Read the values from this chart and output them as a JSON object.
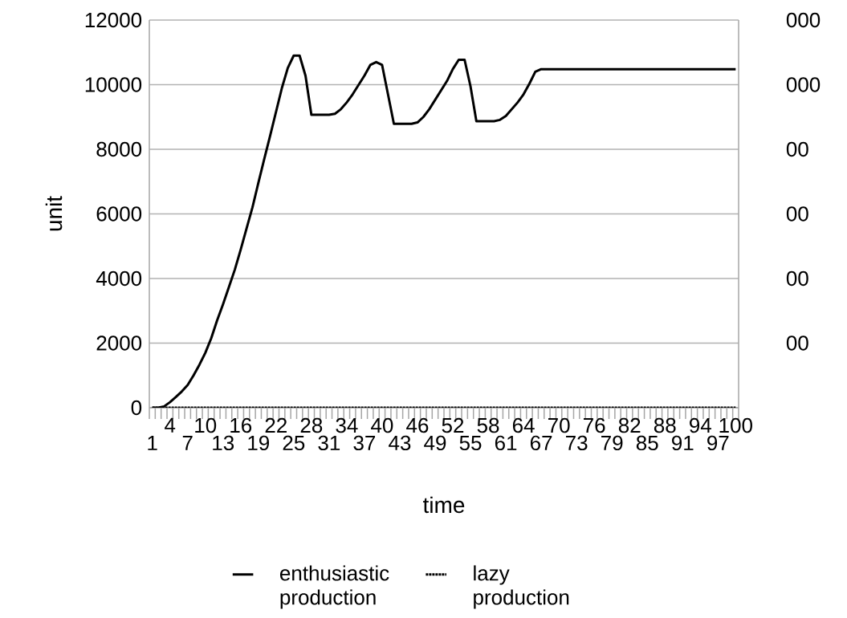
{
  "chart_data": {
    "type": "line",
    "xlabel": "time",
    "ylabel": "unit",
    "categories": [
      "1",
      null,
      null,
      "4",
      null,
      null,
      "7",
      null,
      null,
      "10",
      null,
      null,
      "13",
      null,
      null,
      "16",
      null,
      null,
      "19",
      null,
      null,
      "22",
      null,
      null,
      "25",
      null,
      null,
      "28",
      null,
      null,
      "31",
      null,
      null,
      "34",
      null,
      null,
      "37",
      null,
      null,
      "40",
      null,
      null,
      "43",
      null,
      null,
      "46",
      null,
      null,
      "49",
      null,
      null,
      "52",
      null,
      null,
      "55",
      null,
      null,
      "58",
      null,
      null,
      "61",
      null,
      null,
      "64",
      null,
      null,
      "67",
      null,
      null,
      "70",
      null,
      null,
      "73",
      null,
      null,
      "76",
      null,
      null,
      "79",
      null,
      null,
      "82",
      null,
      null,
      "85",
      null,
      null,
      "88",
      null,
      null,
      "91",
      null,
      null,
      "94",
      null,
      null,
      "97",
      null,
      null,
      "100"
    ],
    "series": [
      {
        "name": "enthusiastic production",
        "color": "#000000",
        "line_style": "solid",
        "values": [
          0,
          0,
          40,
          170,
          330,
          500,
          700,
          1000,
          1330,
          1700,
          2150,
          2700,
          3200,
          3730,
          4270,
          4890,
          5550,
          6200,
          6960,
          7700,
          8420,
          9160,
          9900,
          10520,
          10900,
          10900,
          10280,
          9070,
          9070,
          9070,
          9070,
          9100,
          9240,
          9450,
          9700,
          9990,
          10280,
          10610,
          10700,
          10610,
          9700,
          8790,
          8790,
          8790,
          8790,
          8830,
          9000,
          9240,
          9530,
          9820,
          10110,
          10480,
          10770,
          10770,
          9950,
          8870,
          8870,
          8870,
          8870,
          8910,
          9030,
          9240,
          9450,
          9700,
          10030,
          10400,
          10480,
          10480,
          10480,
          10480,
          10480,
          10480,
          10480,
          10480,
          10480,
          10480,
          10480,
          10480,
          10480,
          10480,
          10480,
          10480,
          10480,
          10480,
          10480,
          10480,
          10480,
          10480,
          10480,
          10480,
          10480,
          10480,
          10480,
          10480,
          10480,
          10480,
          10480,
          10480,
          10480,
          10480
        ]
      },
      {
        "name": "lazy production",
        "color": "#000000",
        "line_style": "dotted",
        "values": [
          0,
          0,
          0,
          0,
          0,
          0,
          0,
          0,
          0,
          0,
          0,
          0,
          0,
          0,
          0,
          0,
          0,
          0,
          0,
          0,
          0,
          0,
          0,
          0,
          0,
          0,
          0,
          0,
          0,
          0,
          0,
          0,
          0,
          0,
          0,
          0,
          0,
          0,
          0,
          0,
          0,
          0,
          0,
          0,
          0,
          0,
          0,
          0,
          0,
          0,
          0,
          0,
          0,
          0,
          0,
          0,
          0,
          0,
          0,
          0,
          0,
          0,
          0,
          0,
          0,
          0,
          0,
          0,
          0,
          0,
          0,
          0,
          0,
          0,
          0,
          0,
          0,
          0,
          0,
          0,
          0,
          0,
          0,
          0,
          0,
          0,
          0,
          0,
          0,
          0,
          0,
          0,
          0,
          0,
          0,
          0,
          0,
          0,
          0,
          0
        ]
      }
    ],
    "ylim": [
      0,
      12000
    ],
    "yticks": [
      0,
      2000,
      4000,
      6000,
      8000,
      10000,
      12000
    ],
    "annotations": [
      "000",
      "000",
      "00",
      "00",
      "00",
      "00"
    ],
    "grid": "y",
    "legend": "bottom",
    "marker": "none"
  }
}
